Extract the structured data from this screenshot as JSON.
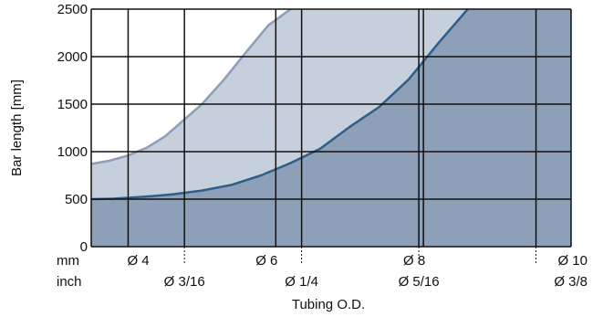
{
  "chart_data": {
    "type": "area",
    "title": "",
    "xlabel": "Tubing O.D.",
    "ylabel": "Bar length [mm]",
    "xlim": [
      3.5,
      10
    ],
    "ylim": [
      0,
      2500
    ],
    "y_ticks": [
      0,
      500,
      1000,
      1500,
      2000,
      2500
    ],
    "grid": true,
    "row_labels": {
      "mm": "mm",
      "inch": "inch"
    },
    "mm_ticks": [
      {
        "value": 4,
        "label": "Ø 4"
      },
      {
        "value": 6,
        "label": "Ø 6"
      },
      {
        "value": 8,
        "label": "Ø 8"
      },
      {
        "value": 10,
        "label": "Ø 10"
      }
    ],
    "inch_ticks": [
      {
        "value": 4.7625,
        "label": "Ø 3/16"
      },
      {
        "value": 6.35,
        "label": "Ø 1/4"
      },
      {
        "value": 7.9375,
        "label": "Ø 5/16"
      },
      {
        "value": 9.525,
        "label": "Ø 3/8"
      }
    ],
    "series": [
      {
        "x": [
          3.5,
          3.8,
          4.0,
          4.3,
          4.6,
          5.0,
          5.4,
          5.8,
          6.2,
          6.6,
          7.0,
          7.4,
          7.8,
          8.2,
          8.6
        ],
        "values": [
          500,
          505,
          515,
          530,
          550,
          590,
          650,
          750,
          880,
          1030,
          1260,
          1470,
          1760,
          2140,
          2500
        ],
        "color": "#2d5f8a",
        "fill": "#8ea0b8"
      },
      {
        "x": [
          3.5,
          3.75,
          4.0,
          4.25,
          4.5,
          4.75,
          5.0,
          5.3,
          5.6,
          5.9,
          6.2
        ],
        "values": [
          870,
          905,
          960,
          1040,
          1160,
          1330,
          1500,
          1760,
          2050,
          2330,
          2500
        ],
        "color": "#8d9fb6",
        "fill": "#c6cfdc"
      }
    ],
    "colors": {
      "grid": "#111111",
      "background": "#ffffff"
    }
  }
}
